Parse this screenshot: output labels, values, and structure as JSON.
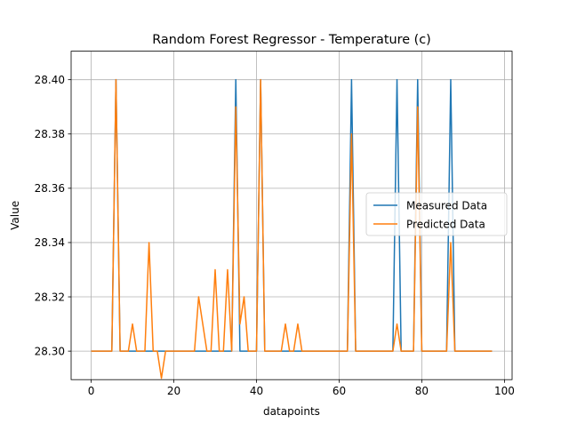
{
  "chart_data": {
    "type": "line",
    "title": "Random Forest Regressor - Temperature (c)",
    "xlabel": "datapoints",
    "ylabel": "Value",
    "xlim": [
      -4.85,
      101.85
    ],
    "ylim": [
      28.2895,
      28.4105
    ],
    "xticks": [
      0,
      20,
      40,
      60,
      80,
      100
    ],
    "xtick_labels": [
      "0",
      "20",
      "40",
      "60",
      "80",
      "100"
    ],
    "yticks": [
      28.3,
      28.32,
      28.34,
      28.36,
      28.38,
      28.4
    ],
    "ytick_labels": [
      "28.30",
      "28.32",
      "28.34",
      "28.36",
      "28.38",
      "28.40"
    ],
    "grid": true,
    "legend_position": "center-right",
    "series": [
      {
        "name": "Measured Data",
        "color": "#1f77b4",
        "x": [
          0,
          1,
          2,
          3,
          4,
          5,
          6,
          7,
          8,
          9,
          10,
          11,
          12,
          13,
          14,
          15,
          16,
          17,
          18,
          19,
          20,
          21,
          22,
          23,
          24,
          25,
          26,
          27,
          28,
          29,
          30,
          31,
          32,
          33,
          34,
          35,
          36,
          37,
          38,
          39,
          40,
          41,
          42,
          43,
          44,
          45,
          46,
          47,
          48,
          49,
          50,
          51,
          52,
          53,
          54,
          55,
          56,
          57,
          58,
          59,
          60,
          61,
          62,
          63,
          64,
          65,
          66,
          67,
          68,
          69,
          70,
          71,
          72,
          73,
          74,
          75,
          76,
          77,
          78,
          79,
          80,
          81,
          82,
          83,
          84,
          85,
          86,
          87,
          88,
          89,
          90,
          91,
          92,
          93,
          94,
          95,
          96,
          97
        ],
        "values": [
          28.3,
          28.3,
          28.3,
          28.3,
          28.3,
          28.3,
          28.4,
          28.3,
          28.3,
          28.3,
          28.3,
          28.3,
          28.3,
          28.3,
          28.3,
          28.3,
          28.3,
          28.3,
          28.3,
          28.3,
          28.3,
          28.3,
          28.3,
          28.3,
          28.3,
          28.3,
          28.3,
          28.3,
          28.3,
          28.3,
          28.3,
          28.3,
          28.3,
          28.3,
          28.3,
          28.4,
          28.3,
          28.3,
          28.3,
          28.3,
          28.3,
          28.4,
          28.3,
          28.3,
          28.3,
          28.3,
          28.3,
          28.3,
          28.3,
          28.3,
          28.3,
          28.3,
          28.3,
          28.3,
          28.3,
          28.3,
          28.3,
          28.3,
          28.3,
          28.3,
          28.3,
          28.3,
          28.3,
          28.4,
          28.3,
          28.3,
          28.3,
          28.3,
          28.3,
          28.3,
          28.3,
          28.3,
          28.3,
          28.3,
          28.4,
          28.3,
          28.3,
          28.3,
          28.3,
          28.4,
          28.3,
          28.3,
          28.3,
          28.3,
          28.3,
          28.3,
          28.3,
          28.4,
          28.3,
          28.3,
          28.3,
          28.3,
          28.3,
          28.3,
          28.3,
          28.3,
          28.3,
          28.3
        ]
      },
      {
        "name": "Predicted Data",
        "color": "#ff7f0e",
        "x": [
          0,
          1,
          2,
          3,
          4,
          5,
          6,
          7,
          8,
          9,
          10,
          11,
          12,
          13,
          14,
          15,
          16,
          17,
          18,
          19,
          20,
          21,
          22,
          23,
          24,
          25,
          26,
          27,
          28,
          29,
          30,
          31,
          32,
          33,
          34,
          35,
          36,
          37,
          38,
          39,
          40,
          41,
          42,
          43,
          44,
          45,
          46,
          47,
          48,
          49,
          50,
          51,
          52,
          53,
          54,
          55,
          56,
          57,
          58,
          59,
          60,
          61,
          62,
          63,
          64,
          65,
          66,
          67,
          68,
          69,
          70,
          71,
          72,
          73,
          74,
          75,
          76,
          77,
          78,
          79,
          80,
          81,
          82,
          83,
          84,
          85,
          86,
          87,
          88,
          89,
          90,
          91,
          92,
          93,
          94,
          95,
          96,
          97
        ],
        "values": [
          28.3,
          28.3,
          28.3,
          28.3,
          28.3,
          28.3,
          28.4,
          28.3,
          28.3,
          28.3,
          28.31,
          28.3,
          28.3,
          28.3,
          28.34,
          28.3,
          28.3,
          28.29,
          28.3,
          28.3,
          28.3,
          28.3,
          28.3,
          28.3,
          28.3,
          28.3,
          28.32,
          28.31,
          28.3,
          28.3,
          28.33,
          28.3,
          28.3,
          28.33,
          28.3,
          28.39,
          28.31,
          28.32,
          28.3,
          28.3,
          28.3,
          28.4,
          28.3,
          28.3,
          28.3,
          28.3,
          28.3,
          28.31,
          28.3,
          28.3,
          28.31,
          28.3,
          28.3,
          28.3,
          28.3,
          28.3,
          28.3,
          28.3,
          28.3,
          28.3,
          28.3,
          28.3,
          28.3,
          28.38,
          28.3,
          28.3,
          28.3,
          28.3,
          28.3,
          28.3,
          28.3,
          28.3,
          28.3,
          28.3,
          28.31,
          28.3,
          28.3,
          28.3,
          28.3,
          28.39,
          28.3,
          28.3,
          28.3,
          28.3,
          28.3,
          28.3,
          28.3,
          28.34,
          28.3,
          28.3,
          28.3,
          28.3,
          28.3,
          28.3,
          28.3,
          28.3,
          28.3,
          28.3
        ]
      }
    ]
  }
}
